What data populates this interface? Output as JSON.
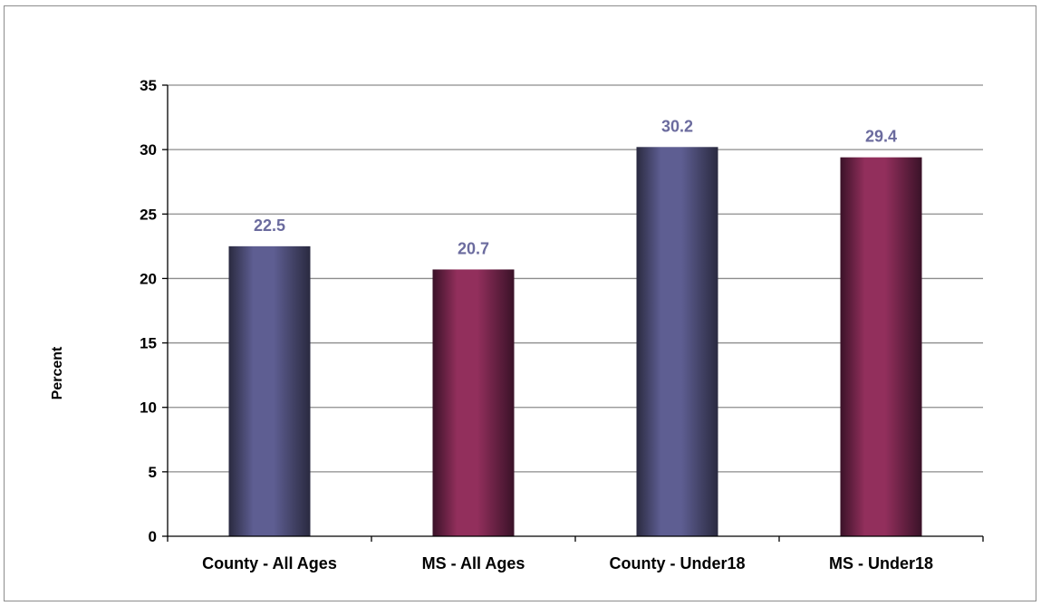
{
  "chart_data": {
    "type": "bar",
    "categories": [
      "County - All Ages",
      "MS - All Ages",
      "County - Under18",
      "MS - Under18"
    ],
    "values": [
      22.5,
      20.7,
      30.2,
      29.4
    ],
    "data_labels": [
      "22.5",
      "20.7",
      "30.2",
      "29.4"
    ],
    "title": "",
    "xlabel": "",
    "ylabel": "Percent",
    "ylim": [
      0,
      35
    ],
    "yticks": [
      0,
      5,
      10,
      15,
      20,
      25,
      30,
      35
    ],
    "grid": true,
    "legend": "none",
    "bar_colors": [
      "#5e5e92",
      "#922f5c",
      "#5e5e92",
      "#922f5c"
    ],
    "bar_dark_colors": [
      "#2a2a40",
      "#3a1228",
      "#2a2a40",
      "#3a1228"
    ],
    "data_label_color": "#6b6b9e"
  }
}
